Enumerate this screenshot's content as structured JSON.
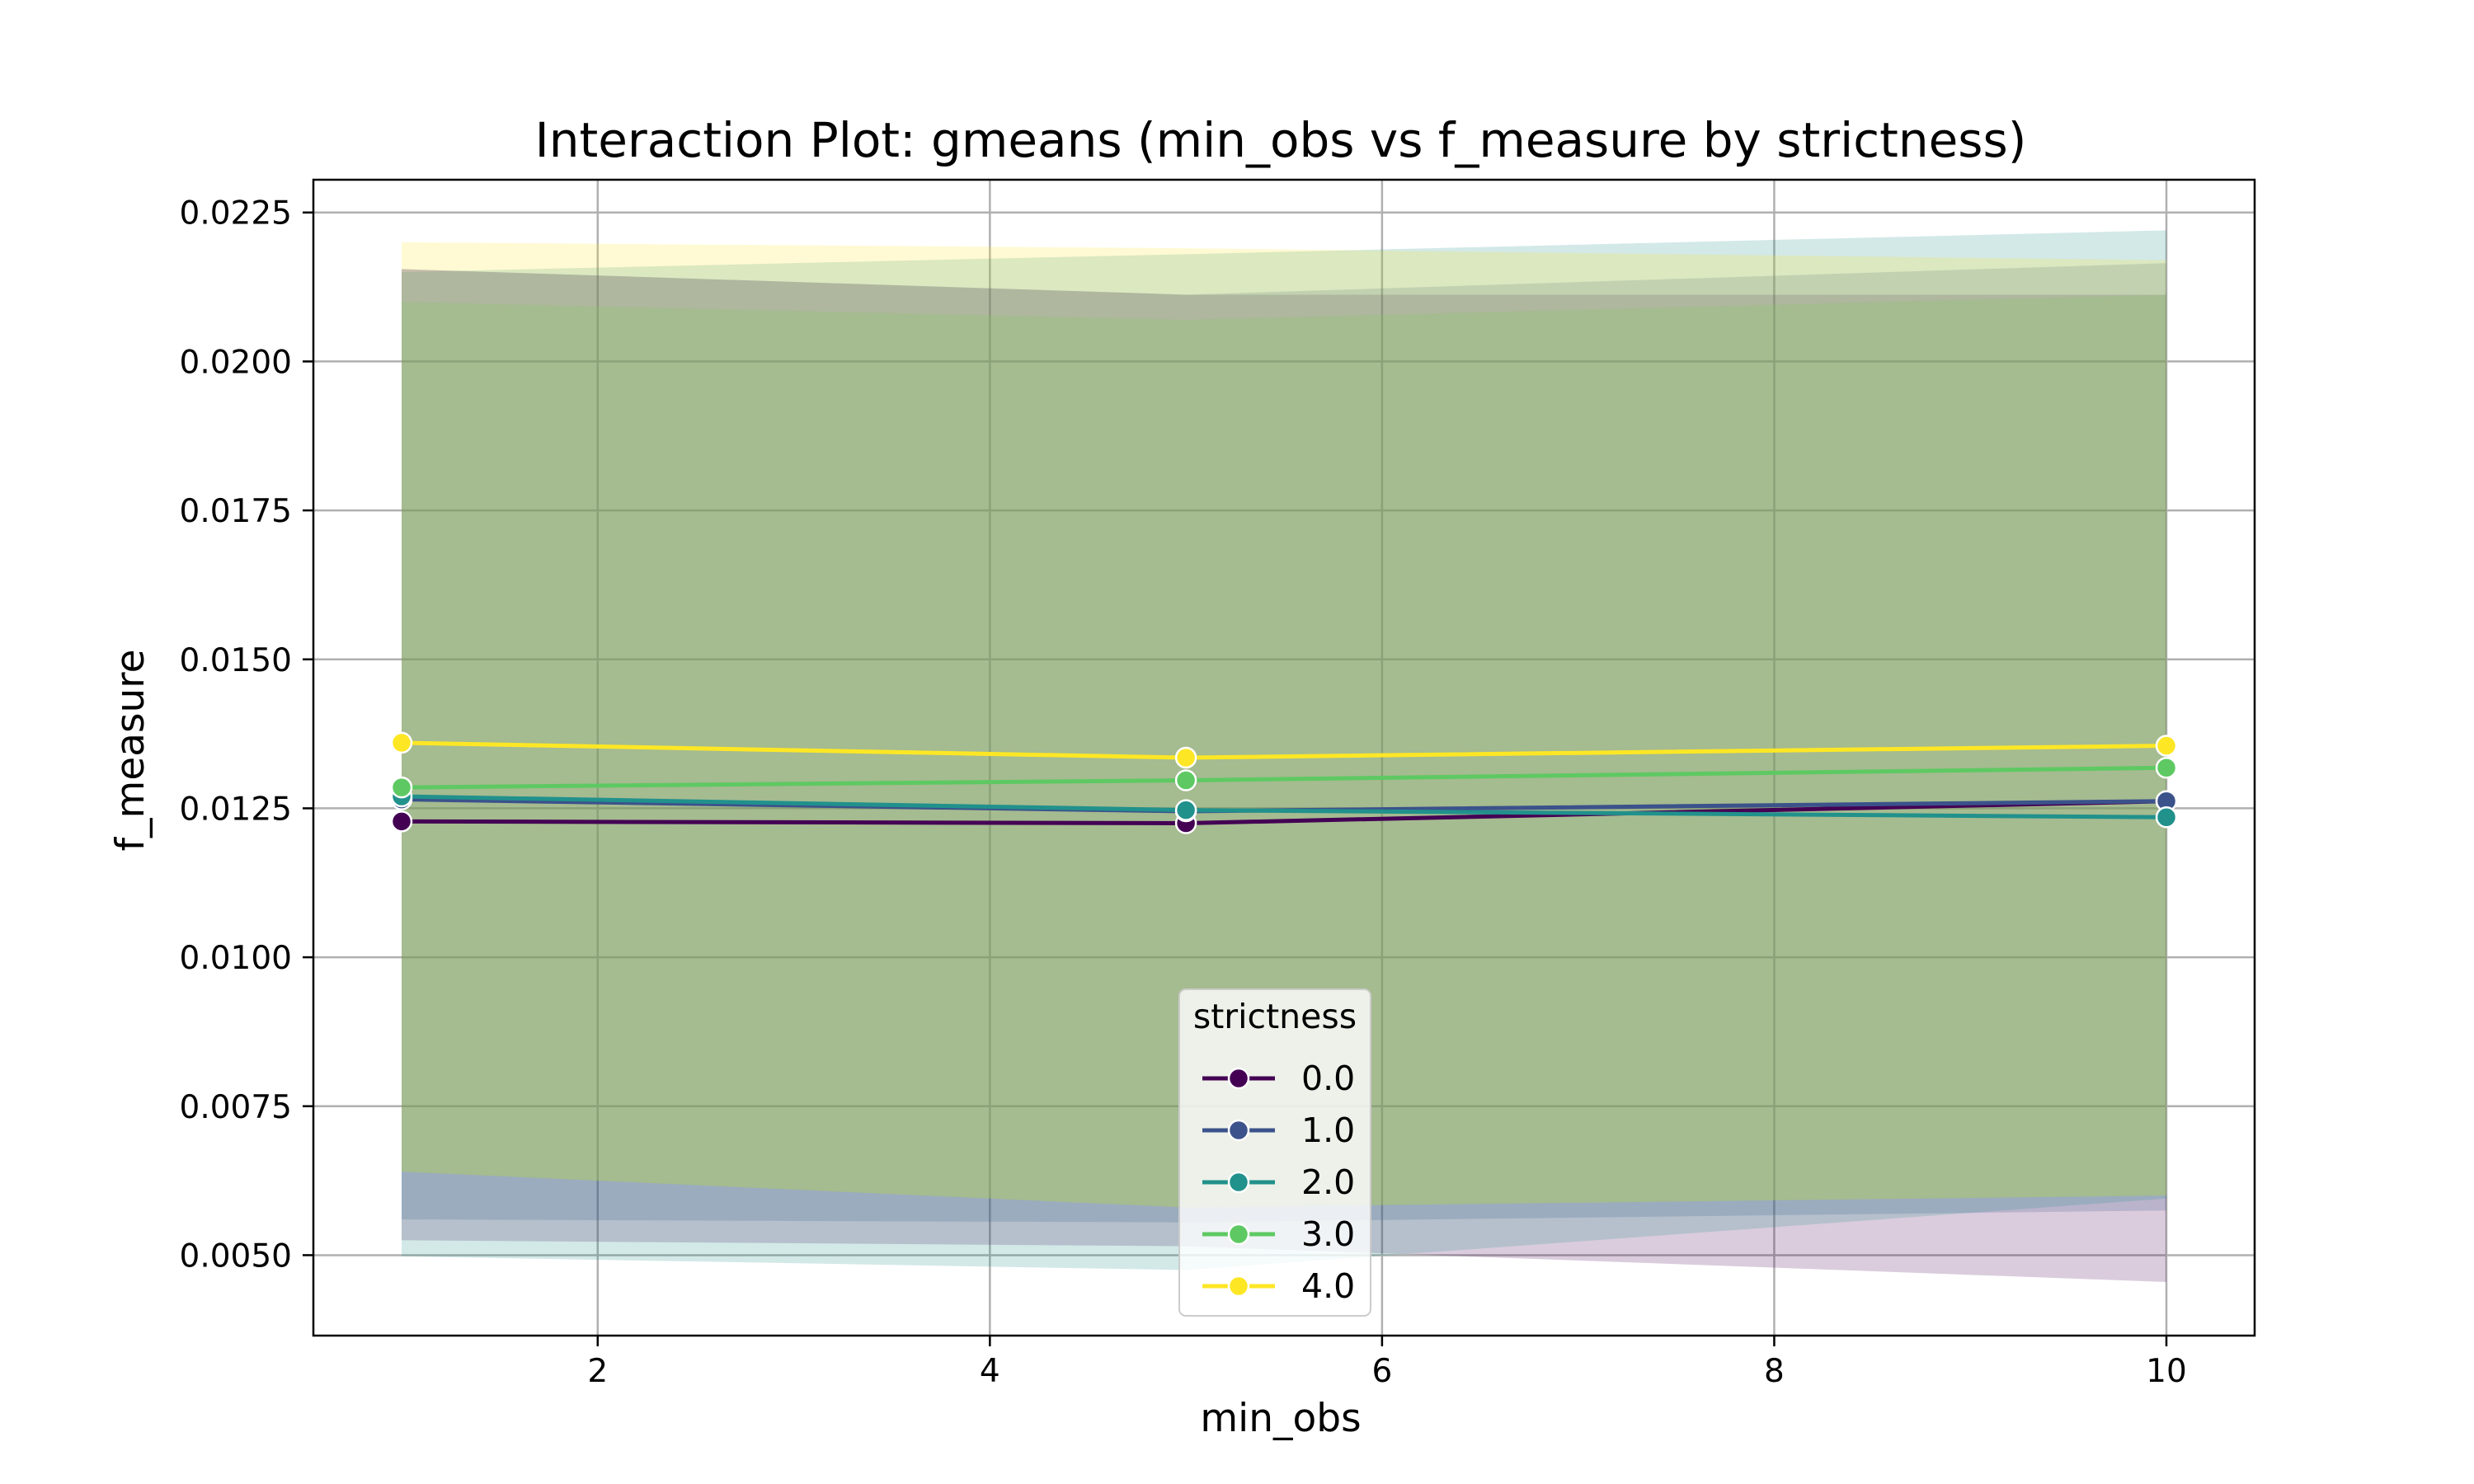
{
  "chart_data": {
    "type": "line",
    "title": "Interaction Plot: gmeans (min_obs vs f_measure by strictness)",
    "xlabel": "min_obs",
    "ylabel": "f_measure",
    "xlim": [
      0.55,
      10.45
    ],
    "ylim": [
      0.00365,
      0.02305
    ],
    "xticks": [
      2,
      4,
      6,
      8,
      10
    ],
    "yticks": [
      0.005,
      0.0075,
      0.01,
      0.0125,
      0.015,
      0.0175,
      0.02,
      0.0225
    ],
    "xtick_labels": [
      "2",
      "4",
      "6",
      "8",
      "10"
    ],
    "ytick_labels": [
      "0.0050",
      "0.0075",
      "0.0100",
      "0.0125",
      "0.0150",
      "0.0175",
      "0.0200",
      "0.0225"
    ],
    "grid": true,
    "legend": {
      "title": "strictness",
      "placement": "lower-center"
    },
    "x": [
      1,
      5,
      10
    ],
    "series": [
      {
        "name": "0.0",
        "color": "#440154",
        "values": [
          0.01228,
          0.01225,
          0.01262
        ],
        "ci_lower": [
          0.00525,
          0.00515,
          0.00455
        ],
        "ci_upper": [
          0.02155,
          0.02112,
          0.02112
        ]
      },
      {
        "name": "1.0",
        "color": "#3b528b",
        "values": [
          0.01265,
          0.01245,
          0.01262
        ],
        "ci_lower": [
          0.0056,
          0.00555,
          0.00575
        ],
        "ci_upper": [
          0.02155,
          0.02112,
          0.02165
        ]
      },
      {
        "name": "2.0",
        "color": "#21918c",
        "values": [
          0.0127,
          0.01247,
          0.01235
        ],
        "ci_lower": [
          0.00498,
          0.00475,
          0.00595
        ],
        "ci_upper": [
          0.0215,
          0.0218,
          0.0222
        ]
      },
      {
        "name": "3.0",
        "color": "#5ec962",
        "values": [
          0.01285,
          0.01297,
          0.01318
        ],
        "ci_lower": [
          0.0064,
          0.0058,
          0.006
        ],
        "ci_upper": [
          0.021,
          0.0207,
          0.02112
        ]
      },
      {
        "name": "4.0",
        "color": "#fde725",
        "values": [
          0.0136,
          0.01335,
          0.01355
        ],
        "ci_lower": [
          0.0064,
          0.0058,
          0.006
        ],
        "ci_upper": [
          0.022,
          0.0219,
          0.0217
        ]
      }
    ]
  }
}
